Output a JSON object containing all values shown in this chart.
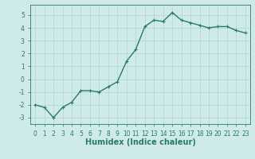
{
  "x": [
    0,
    1,
    2,
    3,
    4,
    5,
    6,
    7,
    8,
    9,
    10,
    11,
    12,
    13,
    14,
    15,
    16,
    17,
    18,
    19,
    20,
    21,
    22,
    23
  ],
  "y": [
    -2.0,
    -2.2,
    -3.0,
    -2.2,
    -1.8,
    -0.9,
    -0.9,
    -1.0,
    -0.6,
    -0.2,
    1.4,
    2.3,
    4.1,
    4.6,
    4.5,
    5.2,
    4.6,
    4.4,
    4.2,
    4.0,
    4.1,
    4.1,
    3.8,
    3.6
  ],
  "line_color": "#2a7a68",
  "marker": "+",
  "marker_size": 3,
  "bg_color": "#ceeaea",
  "grid_color": "#b0d4d4",
  "xlabel": "Humidex (Indice chaleur)",
  "ylim": [
    -3.5,
    5.8
  ],
  "xlim": [
    -0.5,
    23.5
  ],
  "yticks": [
    -3,
    -2,
    -1,
    0,
    1,
    2,
    3,
    4,
    5
  ],
  "xticks": [
    0,
    1,
    2,
    3,
    4,
    5,
    6,
    7,
    8,
    9,
    10,
    11,
    12,
    13,
    14,
    15,
    16,
    17,
    18,
    19,
    20,
    21,
    22,
    23
  ],
  "tick_fontsize": 5.5,
  "xlabel_fontsize": 7.0,
  "line_width": 1.0
}
